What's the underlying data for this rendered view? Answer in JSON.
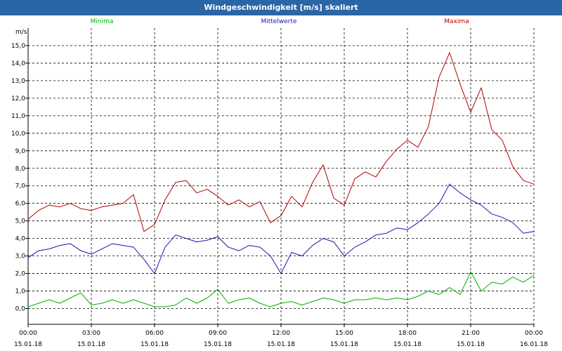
{
  "window": {
    "title": "Windgeschwindigkeit [m/s] skaliert"
  },
  "chart_data": {
    "type": "line",
    "title": "Windgeschwindigkeit [m/s] skaliert",
    "ylabel": "m/s",
    "xlabel": "",
    "ylim": [
      -0.9,
      16.0
    ],
    "xlim_hours": [
      0,
      24
    ],
    "grid": true,
    "legend_placement": "top",
    "y_ticks": [
      "0,0",
      "1,0",
      "2,0",
      "3,0",
      "4,0",
      "5,0",
      "6,0",
      "7,0",
      "8,0",
      "9,0",
      "10,0",
      "11,0",
      "12,0",
      "13,0",
      "14,0",
      "15,0"
    ],
    "x_ticks": [
      {
        "time": "00:00",
        "date": "15.01.18"
      },
      {
        "time": "03:00",
        "date": "15.01.18"
      },
      {
        "time": "06:00",
        "date": "15.01.18"
      },
      {
        "time": "09:00",
        "date": "15.01.18"
      },
      {
        "time": "12:00",
        "date": "15.01.18"
      },
      {
        "time": "15:00",
        "date": "15.01.18"
      },
      {
        "time": "18:00",
        "date": "15.01.18"
      },
      {
        "time": "21:00",
        "date": "15.01.18"
      },
      {
        "time": "00:00",
        "date": "16.01.18"
      }
    ],
    "x": [
      0.0,
      0.5,
      1.0,
      1.5,
      2.0,
      2.5,
      3.0,
      3.5,
      4.0,
      4.5,
      5.0,
      5.5,
      6.0,
      6.5,
      7.0,
      7.5,
      8.0,
      8.5,
      9.0,
      9.5,
      10.0,
      10.5,
      11.0,
      11.5,
      12.0,
      12.5,
      13.0,
      13.5,
      14.0,
      14.5,
      15.0,
      15.5,
      16.0,
      16.5,
      17.0,
      17.5,
      18.0,
      18.5,
      19.0,
      19.5,
      20.0,
      20.5,
      21.0,
      21.5,
      22.0,
      22.5,
      23.0,
      23.5,
      24.0
    ],
    "series": [
      {
        "name": "Minima",
        "color": "#00b000",
        "values": [
          0.1,
          0.3,
          0.5,
          0.3,
          0.6,
          0.9,
          0.2,
          0.3,
          0.5,
          0.3,
          0.5,
          0.3,
          0.1,
          0.1,
          0.2,
          0.6,
          0.3,
          0.6,
          1.1,
          0.3,
          0.5,
          0.6,
          0.3,
          0.1,
          0.3,
          0.4,
          0.2,
          0.4,
          0.6,
          0.5,
          0.3,
          0.5,
          0.5,
          0.6,
          0.5,
          0.6,
          0.5,
          0.7,
          1.0,
          0.8,
          1.2,
          0.8,
          2.1,
          1.0,
          1.5,
          1.4,
          1.8,
          1.5,
          1.9
        ]
      },
      {
        "name": "Mittelwerte",
        "color": "#1818b0",
        "values": [
          2.9,
          3.3,
          3.4,
          3.6,
          3.7,
          3.3,
          3.1,
          3.4,
          3.7,
          3.6,
          3.5,
          2.8,
          2.0,
          3.5,
          4.2,
          4.0,
          3.8,
          3.9,
          4.1,
          3.5,
          3.3,
          3.6,
          3.5,
          3.0,
          2.0,
          3.2,
          3.0,
          3.6,
          4.0,
          3.8,
          3.0,
          3.5,
          3.8,
          4.2,
          4.3,
          4.6,
          4.5,
          4.9,
          5.4,
          6.0,
          7.1,
          6.6,
          6.2,
          5.9,
          5.4,
          5.2,
          4.9,
          4.3,
          4.4
        ]
      },
      {
        "name": "Maxima",
        "color": "#b00000",
        "values": [
          5.1,
          5.6,
          5.9,
          5.8,
          6.0,
          5.7,
          5.6,
          5.8,
          5.9,
          6.0,
          6.5,
          4.4,
          4.8,
          6.2,
          7.2,
          7.3,
          6.6,
          6.8,
          6.4,
          5.9,
          6.2,
          5.8,
          6.1,
          4.9,
          5.3,
          6.4,
          5.8,
          7.2,
          8.2,
          6.3,
          5.9,
          7.4,
          7.8,
          7.5,
          8.4,
          9.1,
          9.6,
          9.2,
          10.4,
          13.2,
          14.6,
          12.8,
          11.2,
          12.6,
          10.2,
          9.6,
          8.1,
          7.3,
          7.1
        ]
      }
    ]
  }
}
